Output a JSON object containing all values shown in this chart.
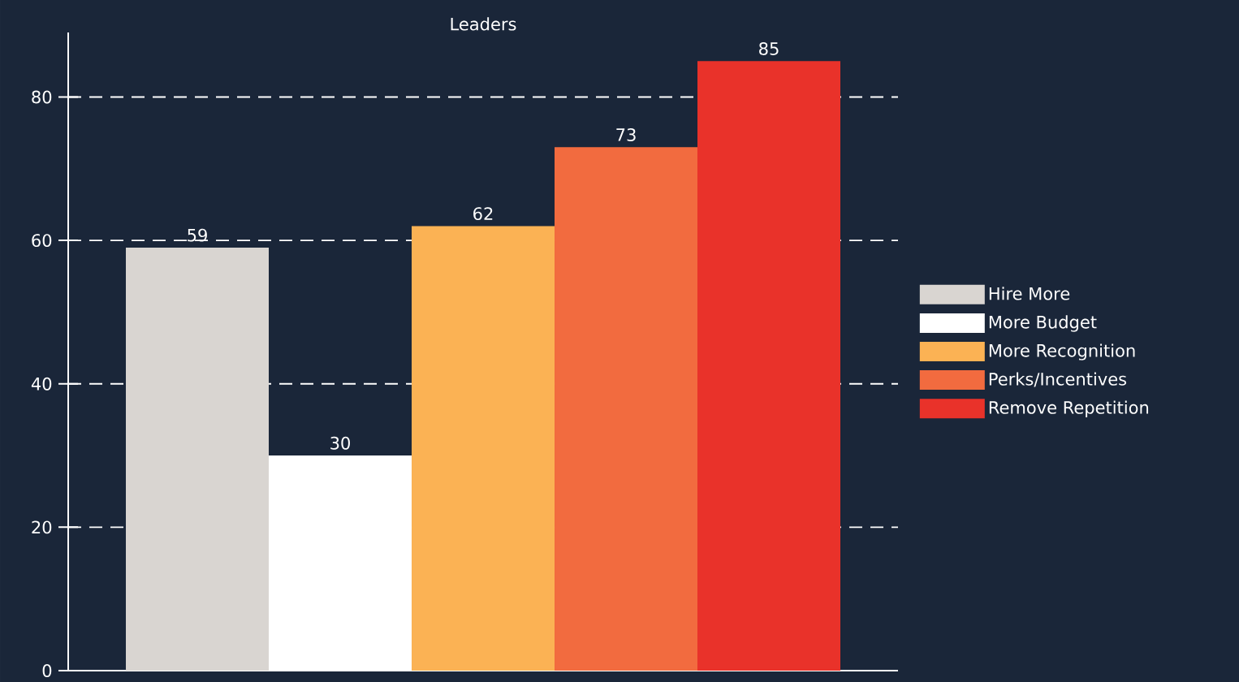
{
  "chart_data": {
    "type": "bar",
    "categories": [
      "Leaders"
    ],
    "series": [
      {
        "name": "Hire More",
        "color": "#d9d5d1",
        "values": [
          59
        ]
      },
      {
        "name": "More Budget",
        "color": "#ffffff",
        "values": [
          30
        ]
      },
      {
        "name": "More Recognition",
        "color": "#fbb254",
        "values": [
          62
        ]
      },
      {
        "name": "Perks/Incentives",
        "color": "#f26b3f",
        "values": [
          73
        ]
      },
      {
        "name": "Remove Repetition",
        "color": "#e9322a",
        "values": [
          85
        ]
      }
    ],
    "ylim": [
      0,
      89
    ],
    "yticks": [
      0,
      20,
      40,
      60,
      80
    ],
    "grid": "y",
    "legend": "right",
    "data_labels": true
  }
}
